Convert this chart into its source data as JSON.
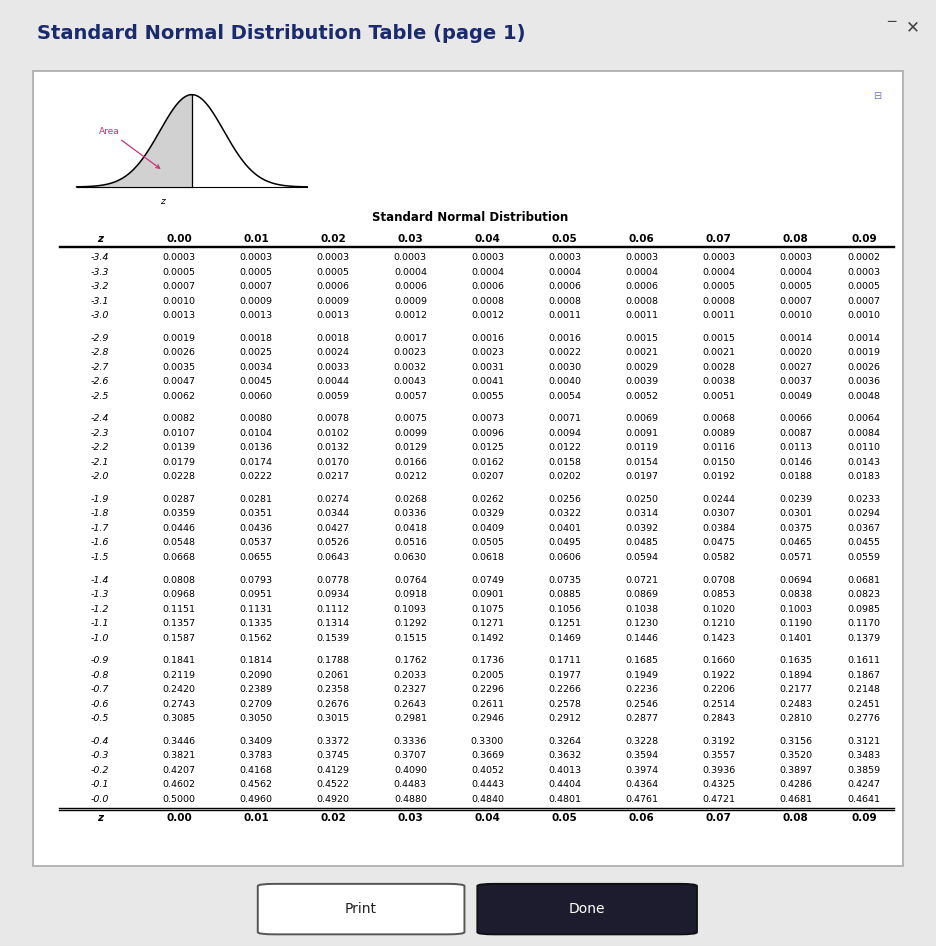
{
  "title": "Standard Normal Distribution Table (page 1)",
  "table_title": "Standard Normal Distribution",
  "col_headers": [
    "z",
    "0.00",
    "0.01",
    "0.02",
    "0.03",
    "0.04",
    "0.05",
    "0.06",
    "0.07",
    "0.08",
    "0.09"
  ],
  "rows": [
    [
      "-3.4",
      "0.0003",
      "0.0003",
      "0.0003",
      "0.0003",
      "0.0003",
      "0.0003",
      "0.0003",
      "0.0003",
      "0.0003",
      "0.0002"
    ],
    [
      "-3.3",
      "0.0005",
      "0.0005",
      "0.0005",
      "0.0004",
      "0.0004",
      "0.0004",
      "0.0004",
      "0.0004",
      "0.0004",
      "0.0003"
    ],
    [
      "-3.2",
      "0.0007",
      "0.0007",
      "0.0006",
      "0.0006",
      "0.0006",
      "0.0006",
      "0.0006",
      "0.0005",
      "0.0005",
      "0.0005"
    ],
    [
      "-3.1",
      "0.0010",
      "0.0009",
      "0.0009",
      "0.0009",
      "0.0008",
      "0.0008",
      "0.0008",
      "0.0008",
      "0.0007",
      "0.0007"
    ],
    [
      "-3.0",
      "0.0013",
      "0.0013",
      "0.0013",
      "0.0012",
      "0.0012",
      "0.0011",
      "0.0011",
      "0.0011",
      "0.0010",
      "0.0010"
    ],
    [
      "-2.9",
      "0.0019",
      "0.0018",
      "0.0018",
      "0.0017",
      "0.0016",
      "0.0016",
      "0.0015",
      "0.0015",
      "0.0014",
      "0.0014"
    ],
    [
      "-2.8",
      "0.0026",
      "0.0025",
      "0.0024",
      "0.0023",
      "0.0023",
      "0.0022",
      "0.0021",
      "0.0021",
      "0.0020",
      "0.0019"
    ],
    [
      "-2.7",
      "0.0035",
      "0.0034",
      "0.0033",
      "0.0032",
      "0.0031",
      "0.0030",
      "0.0029",
      "0.0028",
      "0.0027",
      "0.0026"
    ],
    [
      "-2.6",
      "0.0047",
      "0.0045",
      "0.0044",
      "0.0043",
      "0.0041",
      "0.0040",
      "0.0039",
      "0.0038",
      "0.0037",
      "0.0036"
    ],
    [
      "-2.5",
      "0.0062",
      "0.0060",
      "0.0059",
      "0.0057",
      "0.0055",
      "0.0054",
      "0.0052",
      "0.0051",
      "0.0049",
      "0.0048"
    ],
    [
      "-2.4",
      "0.0082",
      "0.0080",
      "0.0078",
      "0.0075",
      "0.0073",
      "0.0071",
      "0.0069",
      "0.0068",
      "0.0066",
      "0.0064"
    ],
    [
      "-2.3",
      "0.0107",
      "0.0104",
      "0.0102",
      "0.0099",
      "0.0096",
      "0.0094",
      "0.0091",
      "0.0089",
      "0.0087",
      "0.0084"
    ],
    [
      "-2.2",
      "0.0139",
      "0.0136",
      "0.0132",
      "0.0129",
      "0.0125",
      "0.0122",
      "0.0119",
      "0.0116",
      "0.0113",
      "0.0110"
    ],
    [
      "-2.1",
      "0.0179",
      "0.0174",
      "0.0170",
      "0.0166",
      "0.0162",
      "0.0158",
      "0.0154",
      "0.0150",
      "0.0146",
      "0.0143"
    ],
    [
      "-2.0",
      "0.0228",
      "0.0222",
      "0.0217",
      "0.0212",
      "0.0207",
      "0.0202",
      "0.0197",
      "0.0192",
      "0.0188",
      "0.0183"
    ],
    [
      "-1.9",
      "0.0287",
      "0.0281",
      "0.0274",
      "0.0268",
      "0.0262",
      "0.0256",
      "0.0250",
      "0.0244",
      "0.0239",
      "0.0233"
    ],
    [
      "-1.8",
      "0.0359",
      "0.0351",
      "0.0344",
      "0.0336",
      "0.0329",
      "0.0322",
      "0.0314",
      "0.0307",
      "0.0301",
      "0.0294"
    ],
    [
      "-1.7",
      "0.0446",
      "0.0436",
      "0.0427",
      "0.0418",
      "0.0409",
      "0.0401",
      "0.0392",
      "0.0384",
      "0.0375",
      "0.0367"
    ],
    [
      "-1.6",
      "0.0548",
      "0.0537",
      "0.0526",
      "0.0516",
      "0.0505",
      "0.0495",
      "0.0485",
      "0.0475",
      "0.0465",
      "0.0455"
    ],
    [
      "-1.5",
      "0.0668",
      "0.0655",
      "0.0643",
      "0.0630",
      "0.0618",
      "0.0606",
      "0.0594",
      "0.0582",
      "0.0571",
      "0.0559"
    ],
    [
      "-1.4",
      "0.0808",
      "0.0793",
      "0.0778",
      "0.0764",
      "0.0749",
      "0.0735",
      "0.0721",
      "0.0708",
      "0.0694",
      "0.0681"
    ],
    [
      "-1.3",
      "0.0968",
      "0.0951",
      "0.0934",
      "0.0918",
      "0.0901",
      "0.0885",
      "0.0869",
      "0.0853",
      "0.0838",
      "0.0823"
    ],
    [
      "-1.2",
      "0.1151",
      "0.1131",
      "0.1112",
      "0.1093",
      "0.1075",
      "0.1056",
      "0.1038",
      "0.1020",
      "0.1003",
      "0.0985"
    ],
    [
      "-1.1",
      "0.1357",
      "0.1335",
      "0.1314",
      "0.1292",
      "0.1271",
      "0.1251",
      "0.1230",
      "0.1210",
      "0.1190",
      "0.1170"
    ],
    [
      "-1.0",
      "0.1587",
      "0.1562",
      "0.1539",
      "0.1515",
      "0.1492",
      "0.1469",
      "0.1446",
      "0.1423",
      "0.1401",
      "0.1379"
    ],
    [
      "-0.9",
      "0.1841",
      "0.1814",
      "0.1788",
      "0.1762",
      "0.1736",
      "0.1711",
      "0.1685",
      "0.1660",
      "0.1635",
      "0.1611"
    ],
    [
      "-0.8",
      "0.2119",
      "0.2090",
      "0.2061",
      "0.2033",
      "0.2005",
      "0.1977",
      "0.1949",
      "0.1922",
      "0.1894",
      "0.1867"
    ],
    [
      "-0.7",
      "0.2420",
      "0.2389",
      "0.2358",
      "0.2327",
      "0.2296",
      "0.2266",
      "0.2236",
      "0.2206",
      "0.2177",
      "0.2148"
    ],
    [
      "-0.6",
      "0.2743",
      "0.2709",
      "0.2676",
      "0.2643",
      "0.2611",
      "0.2578",
      "0.2546",
      "0.2514",
      "0.2483",
      "0.2451"
    ],
    [
      "-0.5",
      "0.3085",
      "0.3050",
      "0.3015",
      "0.2981",
      "0.2946",
      "0.2912",
      "0.2877",
      "0.2843",
      "0.2810",
      "0.2776"
    ],
    [
      "-0.4",
      "0.3446",
      "0.3409",
      "0.3372",
      "0.3336",
      "0.3300",
      "0.3264",
      "0.3228",
      "0.3192",
      "0.3156",
      "0.3121"
    ],
    [
      "-0.3",
      "0.3821",
      "0.3783",
      "0.3745",
      "0.3707",
      "0.3669",
      "0.3632",
      "0.3594",
      "0.3557",
      "0.3520",
      "0.3483"
    ],
    [
      "-0.2",
      "0.4207",
      "0.4168",
      "0.4129",
      "0.4090",
      "0.4052",
      "0.4013",
      "0.3974",
      "0.3936",
      "0.3897",
      "0.3859"
    ],
    [
      "-0.1",
      "0.4602",
      "0.4562",
      "0.4522",
      "0.4483",
      "0.4443",
      "0.4404",
      "0.4364",
      "0.4325",
      "0.4286",
      "0.4247"
    ],
    [
      "-0.0",
      "0.5000",
      "0.4960",
      "0.4920",
      "0.4880",
      "0.4840",
      "0.4801",
      "0.4761",
      "0.4721",
      "0.4681",
      "0.4641"
    ]
  ],
  "bg_color": "#ffffff",
  "outer_bg": "#e8e8e8",
  "title_color": "#1a2a6c",
  "col_boundaries": [
    0.02,
    0.115,
    0.205,
    0.295,
    0.385,
    0.475,
    0.565,
    0.655,
    0.745,
    0.835,
    0.925,
    0.995
  ]
}
